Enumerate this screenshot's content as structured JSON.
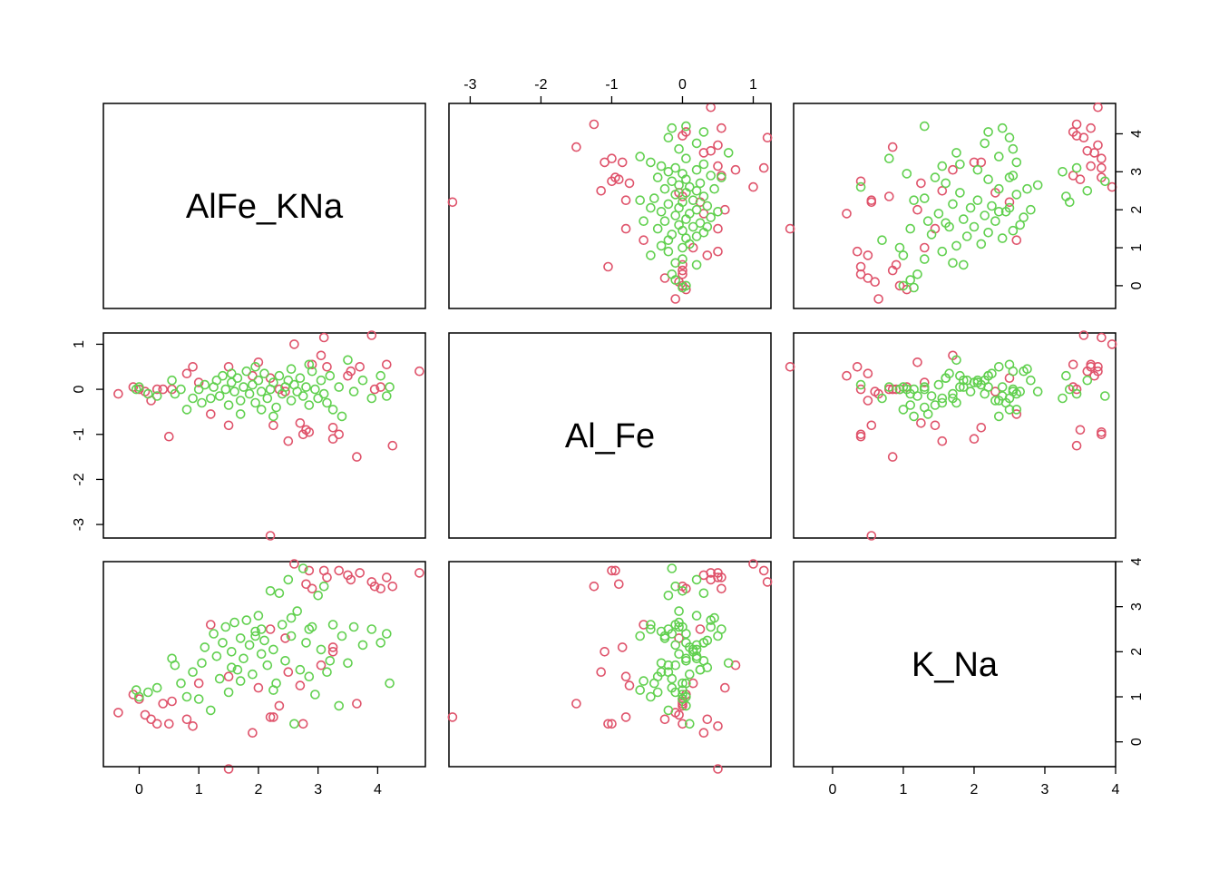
{
  "chart_data": {
    "type": "scatter",
    "kind": "scatterplot-matrix",
    "variables": [
      "AlFe_KNa",
      "Al_Fe",
      "K_Na"
    ],
    "ranges": {
      "AlFe_KNa": [
        -0.6,
        4.8
      ],
      "Al_Fe": [
        -3.3,
        1.25
      ],
      "K_Na": [
        -0.55,
        4.0
      ]
    },
    "ticks": {
      "AlFe_KNa": [
        0,
        1,
        2,
        3,
        4
      ],
      "Al_Fe": [
        -3,
        -2,
        -1,
        0,
        1
      ],
      "K_Na": [
        0,
        1,
        2,
        3,
        4
      ]
    },
    "axes": {
      "top": "Al_Fe",
      "bottom": [
        "AlFe_KNa",
        "K_Na"
      ],
      "left": "Al_Fe",
      "right": [
        "AlFe_KNa",
        "K_Na"
      ]
    },
    "grid": false,
    "legend": "none",
    "groups": [
      {
        "color": "#DF536B",
        "points": [
          [
            -0.35,
            -0.1,
            0.65
          ],
          [
            -0.1,
            0.05,
            1.05
          ],
          [
            0.0,
            0.0,
            0.95
          ],
          [
            0.1,
            -0.05,
            0.6
          ],
          [
            0.2,
            -0.25,
            0.5
          ],
          [
            0.3,
            0.0,
            0.4
          ],
          [
            0.4,
            0.0,
            0.85
          ],
          [
            0.5,
            -1.05,
            0.4
          ],
          [
            0.8,
            0.35,
            0.5
          ],
          [
            0.9,
            0.5,
            0.35
          ],
          [
            1.0,
            0.15,
            1.3
          ],
          [
            1.5,
            0.5,
            -0.6
          ],
          [
            1.5,
            -0.8,
            1.45
          ],
          [
            1.9,
            0.3,
            0.2
          ],
          [
            2.0,
            0.6,
            1.2
          ],
          [
            2.2,
            -3.25,
            0.55
          ],
          [
            2.25,
            -0.8,
            0.55
          ],
          [
            2.35,
            0.0,
            0.8
          ],
          [
            2.45,
            -0.05,
            2.3
          ],
          [
            2.5,
            -1.15,
            1.55
          ],
          [
            2.6,
            1.0,
            3.95
          ],
          [
            2.75,
            -1.0,
            0.4
          ],
          [
            2.8,
            -0.9,
            3.5
          ],
          [
            2.85,
            -0.95,
            3.8
          ],
          [
            2.9,
            0.55,
            3.4
          ],
          [
            3.05,
            0.75,
            1.7
          ],
          [
            3.1,
            1.15,
            3.8
          ],
          [
            3.15,
            0.5,
            3.65
          ],
          [
            3.25,
            -1.1,
            2.0
          ],
          [
            3.35,
            -1.0,
            3.8
          ],
          [
            3.5,
            0.3,
            3.7
          ],
          [
            3.55,
            0.4,
            3.6
          ],
          [
            3.65,
            -1.5,
            0.85
          ],
          [
            3.7,
            0.5,
            3.75
          ],
          [
            3.9,
            1.2,
            3.55
          ],
          [
            3.95,
            0.0,
            3.45
          ],
          [
            4.05,
            0.05,
            3.4
          ],
          [
            4.15,
            0.55,
            3.65
          ],
          [
            4.25,
            -1.25,
            3.45
          ],
          [
            4.7,
            0.4,
            3.75
          ],
          [
            1.2,
            -0.55,
            2.6
          ],
          [
            2.2,
            0.25,
            2.5
          ],
          [
            0.55,
            0.0,
            0.9
          ],
          [
            2.7,
            -0.75,
            1.25
          ],
          [
            3.25,
            -0.85,
            2.1
          ]
        ]
      },
      {
        "color": "#61D04F",
        "points": [
          [
            -0.05,
            0.0,
            1.15
          ],
          [
            0.0,
            0.05,
            1.0
          ],
          [
            0.15,
            -0.1,
            1.1
          ],
          [
            0.3,
            -0.15,
            1.2
          ],
          [
            0.55,
            0.2,
            1.85
          ],
          [
            0.6,
            -0.1,
            1.7
          ],
          [
            0.7,
            0.0,
            1.3
          ],
          [
            0.8,
            -0.45,
            1.0
          ],
          [
            0.9,
            -0.2,
            1.55
          ],
          [
            1.0,
            0.0,
            0.95
          ],
          [
            1.05,
            -0.3,
            1.75
          ],
          [
            1.1,
            0.1,
            2.1
          ],
          [
            1.2,
            -0.2,
            0.7
          ],
          [
            1.25,
            0.05,
            2.4
          ],
          [
            1.3,
            0.2,
            1.9
          ],
          [
            1.35,
            -0.15,
            1.4
          ],
          [
            1.4,
            0.3,
            2.2
          ],
          [
            1.45,
            0.0,
            2.55
          ],
          [
            1.5,
            -0.35,
            1.1
          ],
          [
            1.55,
            0.15,
            2.0
          ],
          [
            1.6,
            -0.05,
            2.65
          ],
          [
            1.65,
            0.25,
            1.6
          ],
          [
            1.7,
            -0.25,
            2.3
          ],
          [
            1.75,
            0.05,
            1.85
          ],
          [
            1.8,
            0.4,
            2.7
          ],
          [
            1.85,
            -0.1,
            2.15
          ],
          [
            1.9,
            0.1,
            1.5
          ],
          [
            1.95,
            -0.3,
            2.45
          ],
          [
            2.0,
            0.2,
            2.8
          ],
          [
            2.05,
            -0.05,
            1.95
          ],
          [
            2.1,
            0.35,
            2.25
          ],
          [
            2.15,
            -0.2,
            1.7
          ],
          [
            2.2,
            0.0,
            3.35
          ],
          [
            2.25,
            0.15,
            2.05
          ],
          [
            2.3,
            -0.4,
            1.3
          ],
          [
            2.35,
            0.3,
            3.3
          ],
          [
            2.4,
            -0.1,
            2.6
          ],
          [
            2.45,
            0.05,
            1.8
          ],
          [
            2.5,
            0.2,
            3.6
          ],
          [
            2.55,
            -0.25,
            2.35
          ],
          [
            2.6,
            0.1,
            0.4
          ],
          [
            2.65,
            -0.05,
            2.9
          ],
          [
            2.7,
            0.25,
            1.6
          ],
          [
            2.75,
            -0.15,
            3.85
          ],
          [
            2.8,
            0.05,
            2.2
          ],
          [
            2.85,
            -0.35,
            1.45
          ],
          [
            2.9,
            0.4,
            2.55
          ],
          [
            2.95,
            0.0,
            1.05
          ],
          [
            3.0,
            -0.2,
            3.25
          ],
          [
            3.05,
            0.2,
            2.05
          ],
          [
            3.1,
            -0.1,
            3.45
          ],
          [
            3.2,
            0.3,
            1.8
          ],
          [
            3.25,
            -0.45,
            2.6
          ],
          [
            3.35,
            0.05,
            0.8
          ],
          [
            3.4,
            -0.6,
            2.35
          ],
          [
            3.5,
            0.65,
            1.75
          ],
          [
            3.6,
            -0.05,
            2.55
          ],
          [
            3.75,
            0.2,
            2.15
          ],
          [
            3.9,
            -0.2,
            2.5
          ],
          [
            4.05,
            0.3,
            2.2
          ],
          [
            4.15,
            -0.15,
            2.4
          ],
          [
            4.2,
            0.05,
            1.3
          ],
          [
            1.95,
            0.5,
            2.35
          ],
          [
            2.25,
            -0.6,
            1.15
          ],
          [
            2.55,
            0.45,
            2.75
          ],
          [
            1.7,
            -0.55,
            1.35
          ],
          [
            2.85,
            0.55,
            2.5
          ],
          [
            3.15,
            -0.3,
            1.55
          ],
          [
            2.05,
            -0.45,
            2.5
          ],
          [
            1.55,
            0.35,
            1.65
          ]
        ]
      }
    ]
  }
}
